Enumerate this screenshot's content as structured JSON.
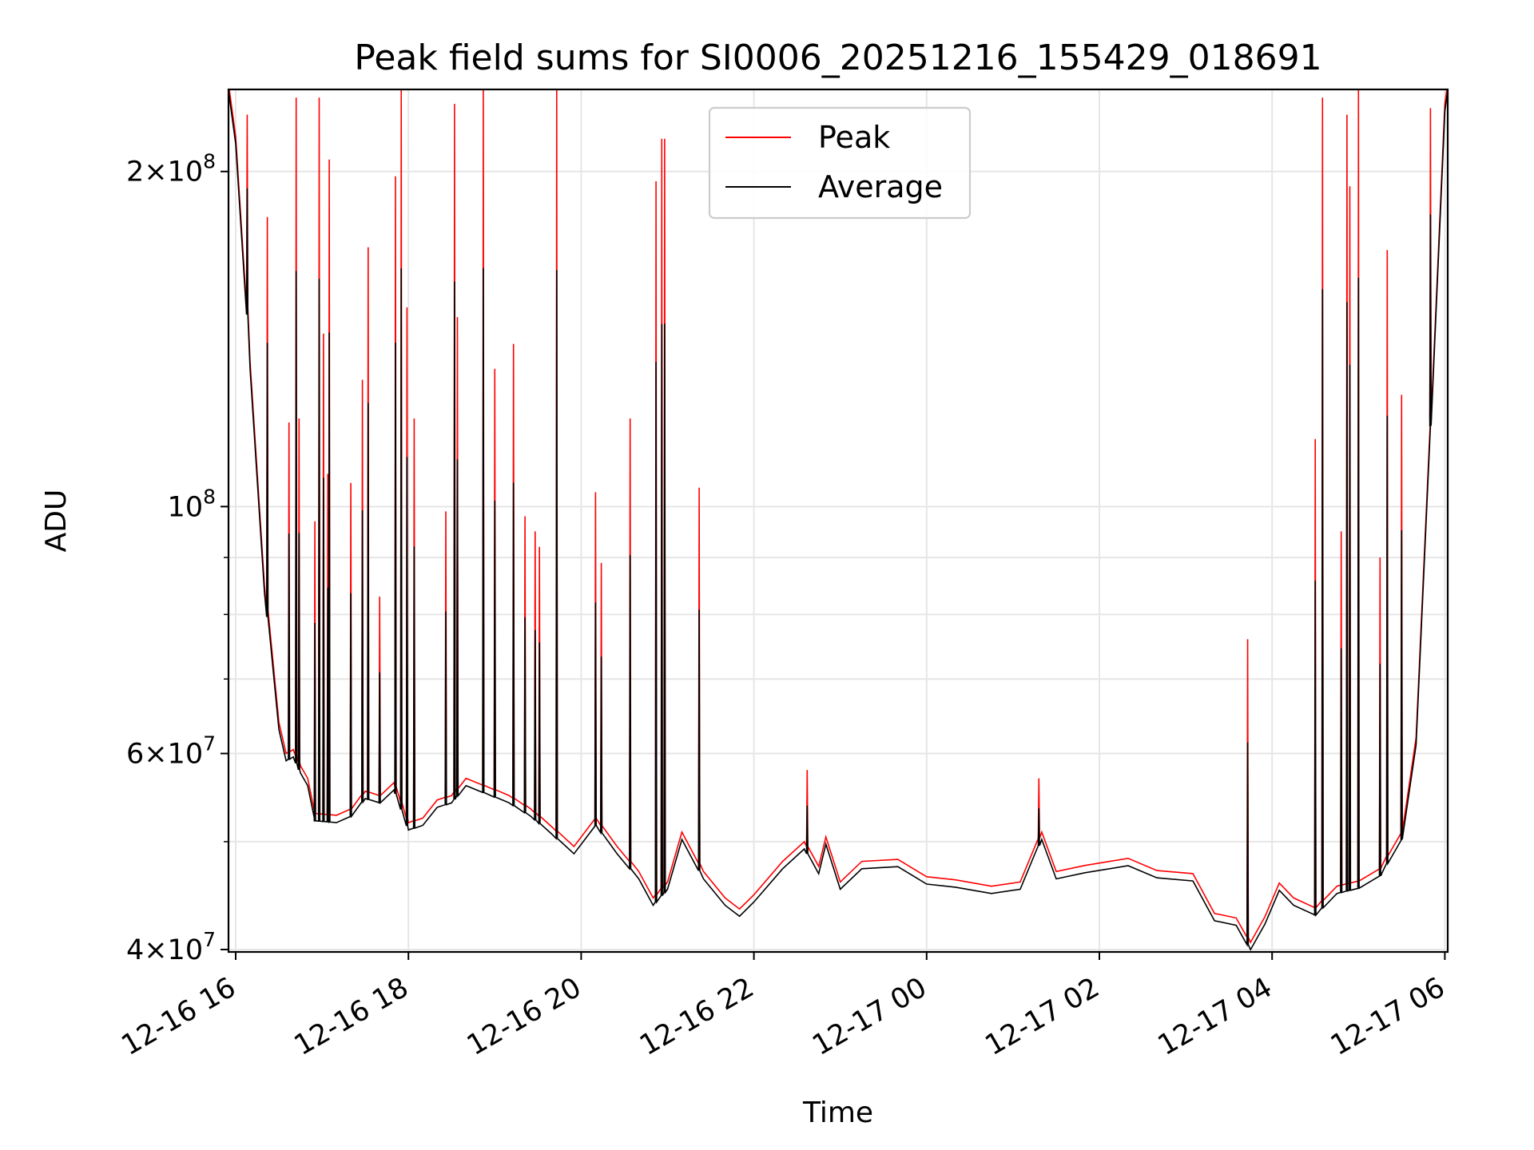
{
  "chart_data": {
    "type": "line",
    "title": "Peak field sums for SI0006_20251216_155429_018691",
    "xlabel": "Time",
    "ylabel": "ADU",
    "y_scale": "log",
    "ylim": [
      39800000,
      237000000
    ],
    "xlim": [
      "2025-12-16T15:55",
      "2025-12-17T06:02"
    ],
    "grid": true,
    "legend_position": "upper center",
    "x_ticks": [
      {
        "t": "2025-12-16T16:00",
        "label": "12-16 16"
      },
      {
        "t": "2025-12-16T18:00",
        "label": "12-16 18"
      },
      {
        "t": "2025-12-16T20:00",
        "label": "12-16 20"
      },
      {
        "t": "2025-12-16T22:00",
        "label": "12-16 22"
      },
      {
        "t": "2025-12-17T00:00",
        "label": "12-17 00"
      },
      {
        "t": "2025-12-17T02:00",
        "label": "12-17 02"
      },
      {
        "t": "2025-12-17T04:00",
        "label": "12-17 04"
      },
      {
        "t": "2025-12-17T06:00",
        "label": "12-17 06"
      }
    ],
    "y_ticks": [
      {
        "value": 40000000,
        "mant": "4",
        "exp": "7"
      },
      {
        "value": 60000000,
        "mant": "6",
        "exp": "7"
      },
      {
        "value": 100000000,
        "mant": "",
        "exp": "8"
      },
      {
        "value": 200000000,
        "mant": "2",
        "exp": "8"
      }
    ],
    "y_minor_ticks": [
      50000000,
      70000000,
      80000000,
      90000000
    ],
    "series": [
      {
        "name": "Peak",
        "color": "#ff0000",
        "baseline": [
          [
            "2025-12-16T15:55",
            240000000
          ],
          [
            "2025-12-16T16:00",
            215000000
          ],
          [
            "2025-12-16T16:10",
            135000000
          ],
          [
            "2025-12-16T16:20",
            85000000
          ],
          [
            "2025-12-16T16:30",
            64000000
          ],
          [
            "2025-12-16T16:35",
            60000000
          ],
          [
            "2025-12-16T16:40",
            60500000
          ],
          [
            "2025-12-16T16:45",
            58500000
          ],
          [
            "2025-12-16T16:50",
            57000000
          ],
          [
            "2025-12-16T16:55",
            53000000
          ],
          [
            "2025-12-16T17:10",
            52800000
          ],
          [
            "2025-12-16T17:20",
            53500000
          ],
          [
            "2025-12-16T17:30",
            55500000
          ],
          [
            "2025-12-16T17:40",
            55000000
          ],
          [
            "2025-12-16T17:50",
            56500000
          ],
          [
            "2025-12-16T18:00",
            52000000
          ],
          [
            "2025-12-16T18:10",
            52500000
          ],
          [
            "2025-12-16T18:20",
            54500000
          ],
          [
            "2025-12-16T18:30",
            55000000
          ],
          [
            "2025-12-16T18:40",
            57000000
          ],
          [
            "2025-12-16T18:55",
            56000000
          ],
          [
            "2025-12-16T19:10",
            55000000
          ],
          [
            "2025-12-16T19:25",
            53500000
          ],
          [
            "2025-12-16T19:40",
            51500000
          ],
          [
            "2025-12-16T19:55",
            49500000
          ],
          [
            "2025-12-16T20:10",
            52500000
          ],
          [
            "2025-12-16T20:25",
            49500000
          ],
          [
            "2025-12-16T20:40",
            47000000
          ],
          [
            "2025-12-16T20:50",
            44500000
          ],
          [
            "2025-12-16T21:00",
            46000000
          ],
          [
            "2025-12-16T21:10",
            51000000
          ],
          [
            "2025-12-16T21:25",
            47000000
          ],
          [
            "2025-12-16T21:40",
            44500000
          ],
          [
            "2025-12-16T21:50",
            43500000
          ],
          [
            "2025-12-16T22:00",
            44800000
          ],
          [
            "2025-12-16T22:20",
            48000000
          ],
          [
            "2025-12-16T22:35",
            50000000
          ],
          [
            "2025-12-16T22:45",
            47500000
          ],
          [
            "2025-12-16T22:50",
            50500000
          ],
          [
            "2025-12-16T23:00",
            46000000
          ],
          [
            "2025-12-16T23:15",
            48000000
          ],
          [
            "2025-12-16T23:40",
            48200000
          ],
          [
            "2025-12-17T00:00",
            46500000
          ],
          [
            "2025-12-17T00:20",
            46200000
          ],
          [
            "2025-12-17T00:45",
            45600000
          ],
          [
            "2025-12-17T01:05",
            46000000
          ],
          [
            "2025-12-17T01:20",
            51000000
          ],
          [
            "2025-12-17T01:30",
            47000000
          ],
          [
            "2025-12-17T01:50",
            47600000
          ],
          [
            "2025-12-17T02:20",
            48300000
          ],
          [
            "2025-12-17T02:40",
            47100000
          ],
          [
            "2025-12-17T03:05",
            46800000
          ],
          [
            "2025-12-17T03:20",
            43100000
          ],
          [
            "2025-12-17T03:35",
            42700000
          ],
          [
            "2025-12-17T03:45",
            40600000
          ],
          [
            "2025-12-17T03:55",
            42800000
          ],
          [
            "2025-12-17T04:05",
            45900000
          ],
          [
            "2025-12-17T04:15",
            44500000
          ],
          [
            "2025-12-17T04:30",
            43600000
          ],
          [
            "2025-12-17T04:45",
            45600000
          ],
          [
            "2025-12-17T05:00",
            46100000
          ],
          [
            "2025-12-17T05:15",
            47300000
          ],
          [
            "2025-12-17T05:30",
            51000000
          ],
          [
            "2025-12-17T05:40",
            62000000
          ],
          [
            "2025-12-17T05:50",
            120000000
          ],
          [
            "2025-12-17T06:00",
            230000000
          ],
          [
            "2025-12-17T06:02",
            240000000
          ]
        ],
        "spikes": [
          [
            "2025-12-16T16:08",
            225000000
          ],
          [
            "2025-12-16T16:22",
            182000000
          ],
          [
            "2025-12-16T16:37",
            119000000
          ],
          [
            "2025-12-16T16:42",
            233000000
          ],
          [
            "2025-12-16T16:44",
            120000000
          ],
          [
            "2025-12-16T16:55",
            97000000
          ],
          [
            "2025-12-16T16:58",
            233000000
          ],
          [
            "2025-12-16T17:01",
            143000000
          ],
          [
            "2025-12-16T17:04",
            107000000
          ],
          [
            "2025-12-16T17:05",
            205000000
          ],
          [
            "2025-12-16T17:20",
            105000000
          ],
          [
            "2025-12-16T17:28",
            130000000
          ],
          [
            "2025-12-16T17:32",
            171000000
          ],
          [
            "2025-12-16T17:40",
            83000000
          ],
          [
            "2025-12-16T17:51",
            198000000
          ],
          [
            "2025-12-16T17:55",
            238000000
          ],
          [
            "2025-12-16T17:59",
            151000000
          ],
          [
            "2025-12-16T18:04",
            120000000
          ],
          [
            "2025-12-16T18:26",
            99000000
          ],
          [
            "2025-12-16T18:32",
            230000000
          ],
          [
            "2025-12-16T18:34",
            148000000
          ],
          [
            "2025-12-16T18:52",
            237000000
          ],
          [
            "2025-12-16T19:00",
            133000000
          ],
          [
            "2025-12-16T19:13",
            140000000
          ],
          [
            "2025-12-16T19:21",
            98000000
          ],
          [
            "2025-12-16T19:28",
            95000000
          ],
          [
            "2025-12-16T19:31",
            92000000
          ],
          [
            "2025-12-16T19:43",
            239000000
          ],
          [
            "2025-12-16T20:10",
            103000000
          ],
          [
            "2025-12-16T20:14",
            89000000
          ],
          [
            "2025-12-16T20:34",
            120000000
          ],
          [
            "2025-12-16T20:52",
            196000000
          ],
          [
            "2025-12-16T20:56",
            214000000
          ],
          [
            "2025-12-16T20:58",
            214000000
          ],
          [
            "2025-12-16T21:22",
            104000000
          ],
          [
            "2025-12-16T22:37",
            58000000
          ],
          [
            "2025-12-17T01:18",
            57000000
          ],
          [
            "2025-12-17T03:43",
            76000000
          ],
          [
            "2025-12-17T04:30",
            115000000
          ],
          [
            "2025-12-17T04:35",
            233000000
          ],
          [
            "2025-12-17T04:48",
            95000000
          ],
          [
            "2025-12-17T04:52",
            225000000
          ],
          [
            "2025-12-17T04:54",
            194000000
          ],
          [
            "2025-12-17T05:00",
            238000000
          ],
          [
            "2025-12-17T05:15",
            90000000
          ],
          [
            "2025-12-17T05:20",
            170000000
          ],
          [
            "2025-12-17T05:30",
            126000000
          ],
          [
            "2025-12-17T05:50",
            228000000
          ]
        ]
      },
      {
        "name": "Average",
        "color": "#000000",
        "offset_ratio": 0.985,
        "spike_ratio": 0.6
      }
    ]
  }
}
